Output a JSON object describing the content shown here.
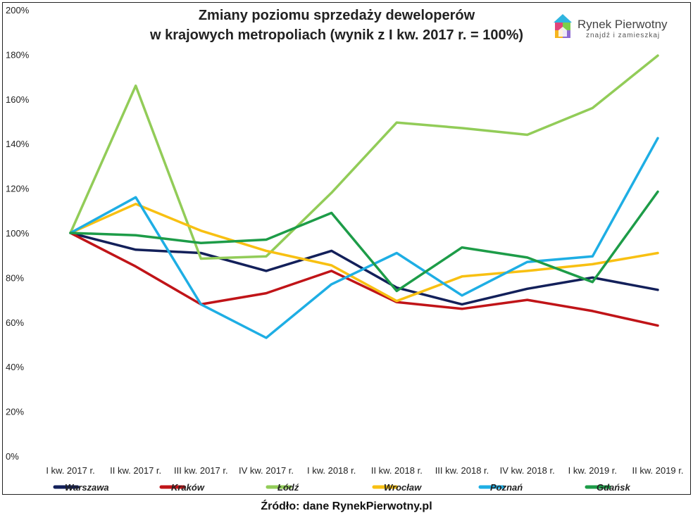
{
  "chart_data": {
    "type": "line",
    "title": [
      "Zmiany poziomu sprzedaży deweloperów",
      "w krajowych metropoliach (wynik z I kw. 2017 r. = 100%)"
    ],
    "categories": [
      "I kw. 2017 r.",
      "II kw. 2017 r.",
      "III kw. 2017 r.",
      "IV kw. 2017 r.",
      "I kw. 2018 r.",
      "II kw. 2018 r.",
      "III kw. 2018 r.",
      "IV kw. 2018 r.",
      "I kw. 2019 r.",
      "II kw. 2019 r."
    ],
    "ylim": [
      0,
      200
    ],
    "yticks": [
      0,
      20,
      40,
      60,
      80,
      100,
      120,
      140,
      160,
      180,
      200
    ],
    "ytick_labels": [
      "0%",
      "20%",
      "40%",
      "60%",
      "80%",
      "100%",
      "120%",
      "140%",
      "160%",
      "180%",
      "200%"
    ],
    "legend_position": "bottom",
    "series": [
      {
        "name": "Warszawa",
        "color": "#13205a",
        "values": [
          100,
          92.5,
          91,
          83,
          92,
          75.5,
          68,
          75,
          80,
          74.5
        ]
      },
      {
        "name": "Kraków",
        "color": "#c01418",
        "values": [
          100,
          85,
          68,
          73,
          83,
          69,
          66,
          70,
          65,
          58.5
        ]
      },
      {
        "name": "Łódź",
        "color": "#92cc58",
        "values": [
          100,
          166,
          88.5,
          89.5,
          118,
          149.5,
          147,
          144,
          156,
          179.5
        ]
      },
      {
        "name": "Wrocław",
        "color": "#f8c012",
        "values": [
          100,
          113,
          101,
          92,
          85.5,
          69.5,
          80.5,
          83,
          86,
          91
        ]
      },
      {
        "name": "Poznań",
        "color": "#1eaee4",
        "values": [
          100,
          116,
          68,
          53,
          77,
          91,
          72,
          87,
          89.5,
          142.5
        ]
      },
      {
        "name": "Gdańsk",
        "color": "#1d9c48",
        "values": [
          100,
          99,
          95.5,
          97,
          109,
          74,
          93.5,
          89,
          78,
          118.5
        ]
      }
    ]
  },
  "brand": {
    "name": "Rynek Pierwotny",
    "tagline": "znajdź i zamieszkaj"
  },
  "source_note": "Źródło: dane RynekPierwotny.pl"
}
